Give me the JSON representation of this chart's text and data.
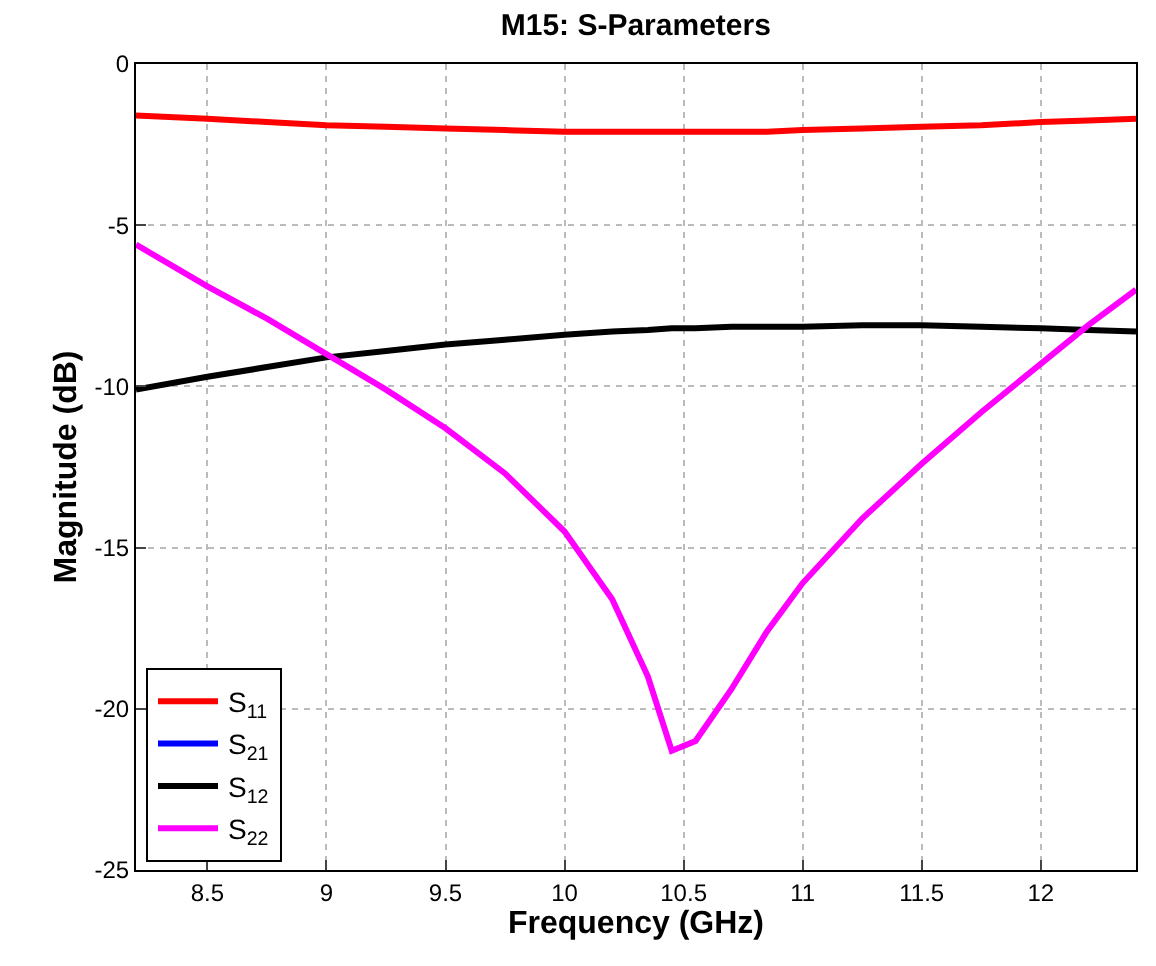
{
  "chart_data": {
    "type": "line",
    "title": "M15: S-Parameters",
    "xlabel": "Frequency (GHz)",
    "ylabel": "Magnitude (dB)",
    "x": [
      8.2,
      8.5,
      8.75,
      9,
      9.25,
      9.5,
      9.75,
      10,
      10.2,
      10.35,
      10.45,
      10.55,
      10.7,
      10.85,
      11,
      11.25,
      11.5,
      11.75,
      12,
      12.2,
      12.4
    ],
    "series": [
      {
        "name": "S$_{11}$",
        "color": "#ff0000",
        "values": [
          -1.6,
          -1.7,
          -1.8,
          -1.9,
          -1.95,
          -2.0,
          -2.05,
          -2.1,
          -2.1,
          -2.1,
          -2.1,
          -2.1,
          -2.1,
          -2.1,
          -2.05,
          -2.0,
          -1.95,
          -1.9,
          -1.8,
          -1.75,
          -1.7
        ]
      },
      {
        "name": "S$_{21}$",
        "color": "#0000ff",
        "values": [
          null,
          null,
          null,
          null,
          null,
          null,
          null,
          null,
          null,
          null,
          null,
          null,
          null,
          null,
          null,
          null,
          null,
          null,
          null,
          null,
          null
        ]
      },
      {
        "name": "S$_{12}$",
        "color": "#000000",
        "values": [
          -10.1,
          -9.7,
          -9.4,
          -9.1,
          -8.9,
          -8.7,
          -8.55,
          -8.4,
          -8.3,
          -8.25,
          -8.2,
          -8.2,
          -8.15,
          -8.15,
          -8.15,
          -8.1,
          -8.1,
          -8.15,
          -8.2,
          -8.25,
          -8.3
        ]
      },
      {
        "name": "S$_{22}$",
        "color": "#ff00ff",
        "values": [
          -5.6,
          -6.9,
          -7.9,
          -9.0,
          -10.1,
          -11.3,
          -12.7,
          -14.5,
          -16.6,
          -19.0,
          -21.3,
          -21.0,
          -19.4,
          -17.6,
          -16.1,
          -14.1,
          -12.4,
          -10.8,
          -9.3,
          -8.1,
          -7.0
        ]
      }
    ],
    "xlim": [
      8.2,
      12.4
    ],
    "xticks": [
      8.5,
      9,
      9.5,
      10,
      10.5,
      11,
      11.5,
      12
    ],
    "ylim": [
      -25,
      0
    ],
    "yticks": [
      -25,
      -20,
      -15,
      -10,
      -5,
      0
    ],
    "grid": true,
    "legend": "bottom left",
    "line_style": "solid",
    "marker": "none"
  }
}
